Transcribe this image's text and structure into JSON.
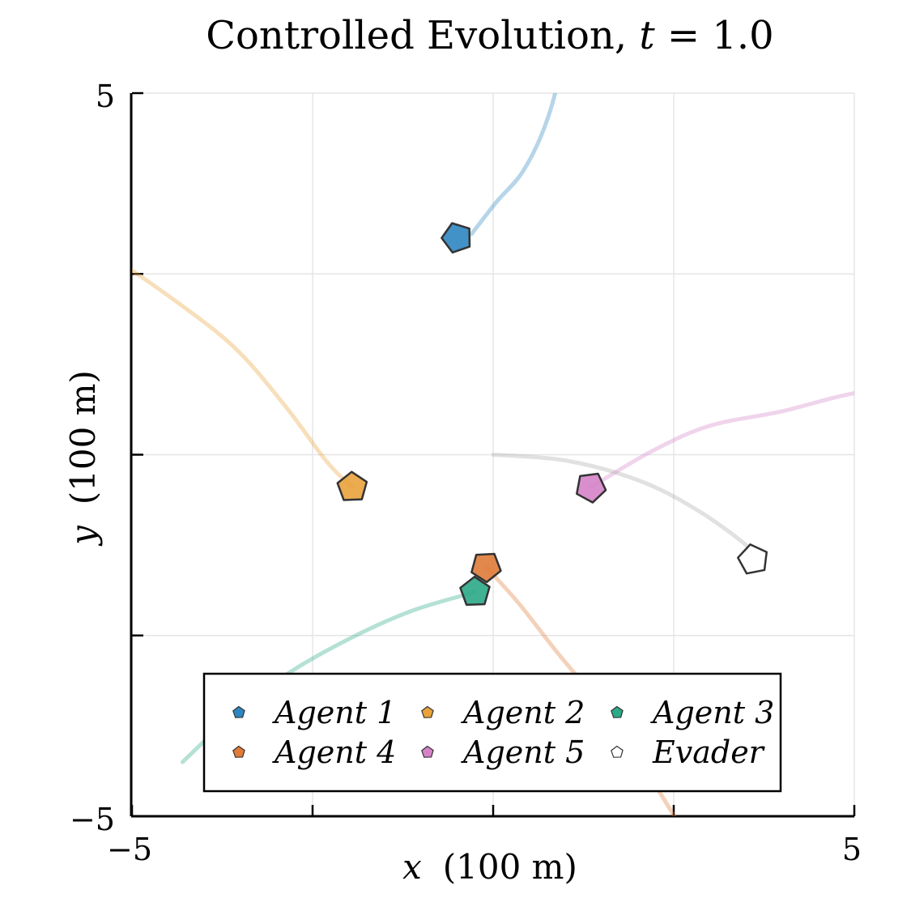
{
  "chart_data": {
    "type": "scatter",
    "title_prefix": "Controlled Evolution, ",
    "title_var": "t",
    "title_eq": " = 1.0",
    "xlabel_var": "x",
    "xlabel_unit": "(100 m)",
    "ylabel_var": "y",
    "ylabel_unit": "(100 m)",
    "xlim": [
      -5,
      5
    ],
    "ylim": [
      -5,
      5
    ],
    "grid": true,
    "x_tick_labels": [
      "−5",
      "5"
    ],
    "y_tick_labels": [
      "5",
      "−5"
    ],
    "legend_position": "bottom-center",
    "series": [
      {
        "name": "Agent 1",
        "color": "#2e86c1",
        "trail": [
          [
            0.95,
            5.91
          ],
          [
            0.9,
            5.2
          ],
          [
            0.7,
            4.5
          ],
          [
            0.4,
            3.9
          ],
          [
            0.05,
            3.5
          ],
          [
            -0.3,
            3.05
          ]
        ],
        "position": [
          -0.5,
          3.0
        ],
        "heading": 1.9
      },
      {
        "name": "Agent 2",
        "color": "#e9a23b",
        "trail": [
          [
            -5.3,
            2.75
          ],
          [
            -4.5,
            2.2
          ],
          [
            -3.6,
            1.5
          ],
          [
            -2.9,
            0.7
          ],
          [
            -2.3,
            -0.1
          ],
          [
            -1.95,
            -0.45
          ]
        ],
        "position": [
          -1.95,
          -0.45
        ],
        "heading": -0.9
      },
      {
        "name": "Agent 3",
        "color": "#2ca987",
        "trail": [
          [
            -4.3,
            -4.25
          ],
          [
            -3.6,
            -3.6
          ],
          [
            -2.8,
            -3.0
          ],
          [
            -1.9,
            -2.5
          ],
          [
            -1.1,
            -2.15
          ],
          [
            -0.25,
            -1.9
          ]
        ],
        "position": [
          -0.25,
          -1.9
        ],
        "heading": 0.35
      },
      {
        "name": "Agent 4",
        "color": "#e07b39",
        "trail": [
          [
            2.75,
            -5.4
          ],
          [
            2.2,
            -4.5
          ],
          [
            1.6,
            -3.6
          ],
          [
            0.9,
            -2.75
          ],
          [
            0.35,
            -2.05
          ],
          [
            -0.1,
            -1.55
          ]
        ],
        "position": [
          -0.1,
          -1.55
        ],
        "heading": 2.25
      },
      {
        "name": "Agent 5",
        "color": "#d583c8",
        "trail": [
          [
            6.0,
            0.95
          ],
          [
            5.0,
            0.85
          ],
          [
            4.0,
            0.6
          ],
          [
            3.0,
            0.4
          ],
          [
            2.2,
            0.05
          ],
          [
            1.35,
            -0.45
          ]
        ],
        "position": [
          1.35,
          -0.45
        ],
        "heading": -2.7
      },
      {
        "name": "Evader",
        "color": "#ffffff",
        "trail": [
          [
            0.0,
            0.0
          ],
          [
            1.0,
            -0.08
          ],
          [
            2.0,
            -0.35
          ],
          [
            2.8,
            -0.75
          ],
          [
            3.5,
            -1.25
          ],
          [
            3.6,
            -1.45
          ]
        ],
        "position": [
          3.6,
          -1.45
        ],
        "heading": -0.75,
        "trail_color": "#a9a9a9"
      }
    ]
  }
}
